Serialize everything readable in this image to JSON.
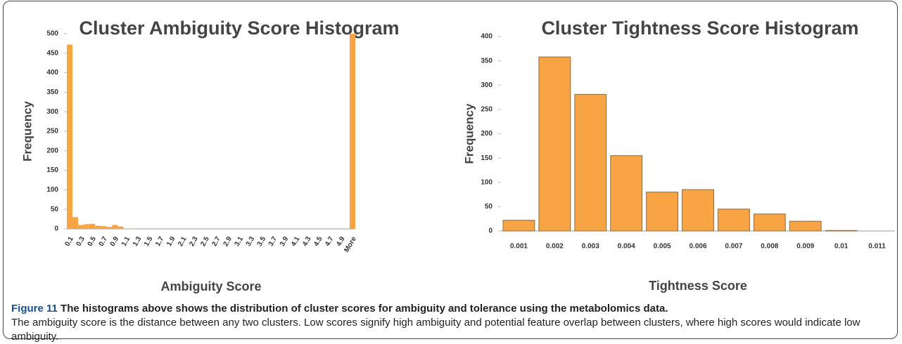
{
  "chart_data": [
    {
      "type": "bar",
      "title": "Cluster Ambiguity Score Histogram",
      "xlabel": "Ambiguity Score",
      "ylabel": "Frequency",
      "categories": [
        "0.1",
        null,
        "0.3",
        null,
        "0.5",
        null,
        "0.7",
        null,
        "0.9",
        null,
        "1.1",
        null,
        "1.3",
        null,
        "1.5",
        null,
        "1.7",
        null,
        "1.9",
        null,
        "2.1",
        null,
        "2.3",
        null,
        "2.5",
        null,
        "2.7",
        null,
        "2.9",
        null,
        "3.1",
        null,
        "3.3",
        null,
        "3.5",
        null,
        "3.7",
        null,
        "3.9",
        null,
        "4.1",
        null,
        "4.3",
        null,
        "4.5",
        null,
        "4.7",
        null,
        "4.9",
        null,
        "More"
      ],
      "values": [
        472,
        30,
        10,
        12,
        13,
        8,
        7,
        5,
        10,
        6,
        1,
        1,
        0,
        0,
        0,
        0,
        0,
        0,
        0,
        0,
        0,
        0,
        0,
        0,
        0,
        0,
        0,
        0,
        0,
        0,
        0,
        0,
        0,
        0,
        0,
        0,
        0,
        0,
        0,
        0,
        0,
        0,
        0,
        0,
        0,
        0,
        0,
        0,
        0,
        0,
        500
      ],
      "color": "#f9a444",
      "ylim": [
        0,
        500
      ],
      "yticks": [
        0,
        50,
        100,
        150,
        200,
        250,
        300,
        350,
        400,
        450,
        500
      ]
    },
    {
      "type": "bar",
      "title": "Cluster Tightness Score Histogram",
      "xlabel": "Tightness Score",
      "ylabel": "Frequency",
      "categories": [
        "0.001",
        "0.002",
        "0.003",
        "0.004",
        "0.005",
        "0.006",
        "0.007",
        "0.008",
        "0.009",
        "0.01",
        "0.011"
      ],
      "values": [
        22,
        358,
        281,
        155,
        80,
        85,
        45,
        35,
        20,
        1,
        0
      ],
      "color": "#f9a444",
      "edgecolor": "#8a6a40",
      "ylim": [
        0,
        400
      ],
      "yticks": [
        0,
        50,
        100,
        150,
        200,
        250,
        300,
        350,
        400
      ]
    }
  ],
  "caption": {
    "label": "Figure 11",
    "title": "The histograms above shows the distribution of cluster scores for ambiguity and tolerance using the metabolomics data.",
    "text": "The ambiguity score is the distance between any two clusters. Low scores signify high ambiguity and potential feature overlap between clusters, where high scores would indicate low ambiguity."
  }
}
